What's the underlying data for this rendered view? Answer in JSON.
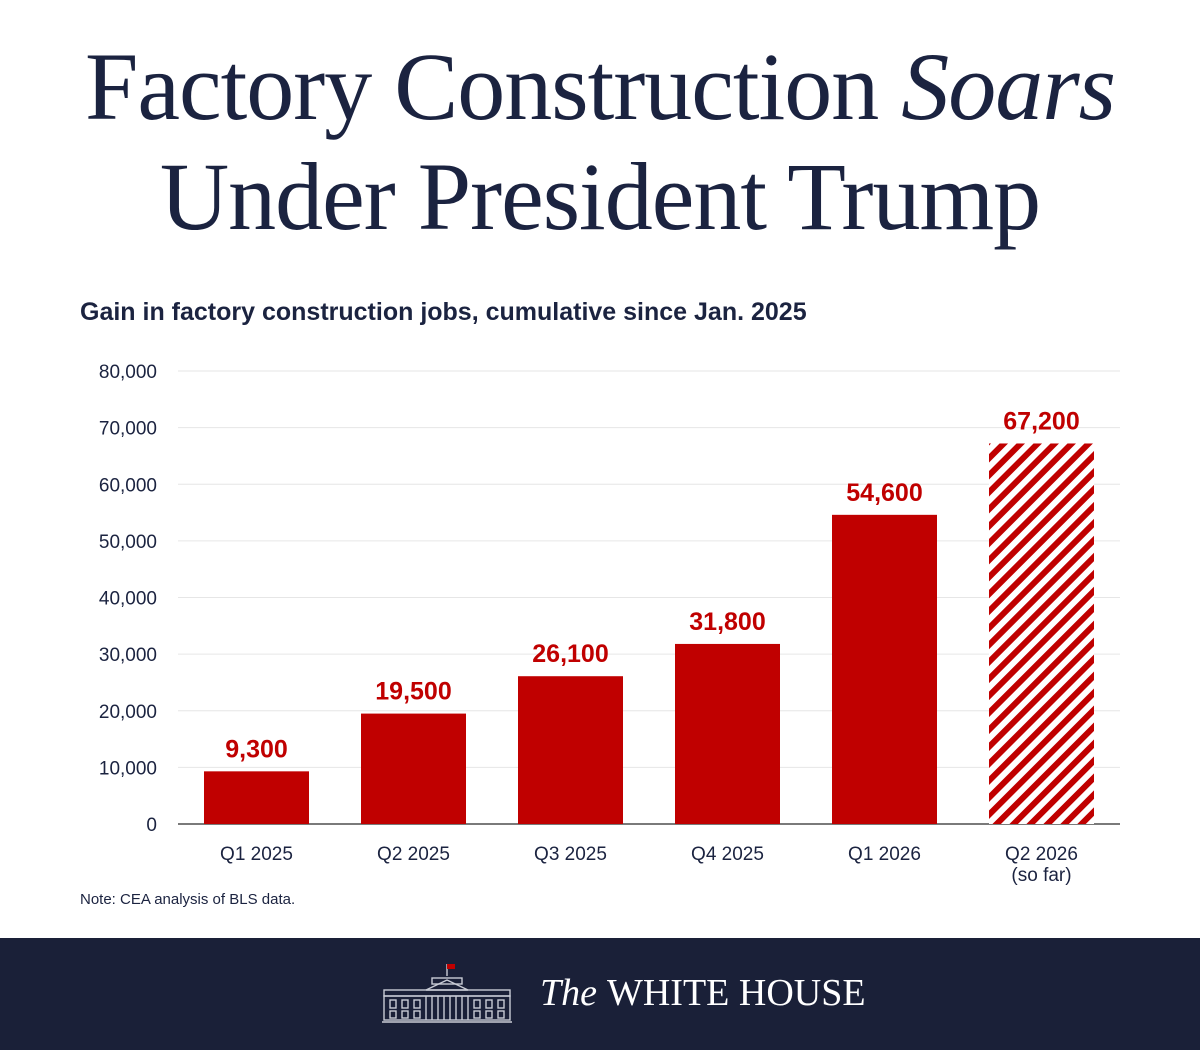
{
  "headline": {
    "line1_plain": "Factory Construction ",
    "line1_italic": "Soars",
    "line2": "Under President Trump"
  },
  "subtitle": "Gain in factory construction jobs, cumulative since Jan. 2025",
  "note": "Note: CEA analysis of BLS data.",
  "footer": {
    "the": "The",
    "name": "WHITE HOUSE",
    "logo_icon": "white-house-building-icon"
  },
  "colors": {
    "bar_red": "#c00000",
    "headline_navy": "#1b2340",
    "footer_bg": "#1a2038",
    "gridline": "#e6e6e6"
  },
  "chart_data": {
    "type": "bar",
    "title": "Gain in factory construction jobs, cumulative since Jan. 2025",
    "categories": [
      [
        "Q1 2025"
      ],
      [
        "Q2 2025"
      ],
      [
        "Q3 2025"
      ],
      [
        "Q4 2025"
      ],
      [
        "Q1 2026"
      ],
      [
        "Q2 2026",
        "(so far)"
      ]
    ],
    "values": [
      9300,
      19500,
      26100,
      31800,
      54600,
      67200
    ],
    "value_labels": [
      "9,300",
      "19,500",
      "26,100",
      "31,800",
      "54,600",
      "67,200"
    ],
    "hatched": [
      false,
      false,
      false,
      false,
      false,
      true
    ],
    "ylim": [
      0,
      80000
    ],
    "yticks": [
      0,
      10000,
      20000,
      30000,
      40000,
      50000,
      60000,
      70000,
      80000
    ],
    "ytick_labels": [
      "0",
      "10,000",
      "20,000",
      "30,000",
      "40,000",
      "50,000",
      "60,000",
      "70,000",
      "80,000"
    ],
    "grid": true,
    "xlabel": "",
    "ylabel": ""
  }
}
